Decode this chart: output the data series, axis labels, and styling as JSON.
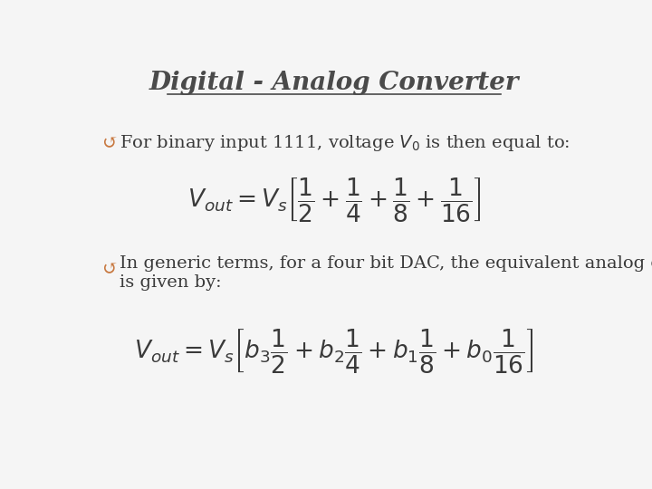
{
  "title": "Digital - Analog Converter",
  "title_color": "#4a4a4a",
  "background_color": "#f5f5f5",
  "border_color": "#cccccc",
  "bullet_color": "#c87941",
  "text_color": "#3a3a3a",
  "bullet1_text": "For binary input 1111, voltage $V_0$ is then equal to:",
  "bullet2_line1": "In generic terms, for a four bit DAC, the equivalent analog output",
  "bullet2_line2": "is given by:",
  "bullet_symbol": "↺",
  "figsize": [
    7.2,
    5.4
  ],
  "dpi": 100
}
